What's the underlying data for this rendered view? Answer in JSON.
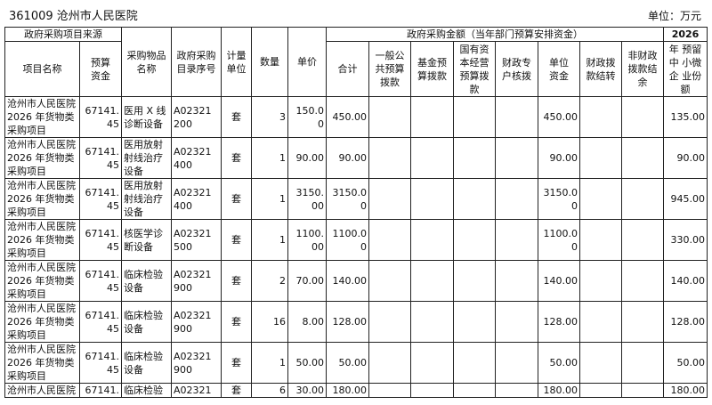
{
  "header": {
    "title": "361009 沧州市人民医院",
    "unit": "单位：万元"
  },
  "table": {
    "group_source": "政府采购项目来源",
    "group_amount": "政府采购金额（当年部门预算安排资金）",
    "group_year": "2026",
    "columns": [
      "项目名称",
      "预算\n资金",
      "采购物品\n名称",
      "政府采购\n目录序号",
      "计量\n单位",
      "数量",
      "单价",
      "合计",
      "一般公\n共预算\n拨款",
      "基金预\n算拨款",
      "国有资\n本经营\n预算拨\n款",
      "财政专\n户核拨",
      "单位\n资金",
      "财政拨\n款结转",
      "非财政\n拨款结\n余",
      "年 预留\n中 小微\n企 业份\n额"
    ],
    "rows": [
      [
        "沧州市人民医院\n2026 年货物类\n采购项目",
        "67141.\n45",
        "医用 X 线\n诊断设备",
        "A02321\n200",
        "套",
        "3",
        "150.0\n0",
        "450.00",
        "",
        "",
        "",
        "",
        "450.00",
        "",
        "",
        "135.00"
      ],
      [
        "沧州市人民医院\n2026 年货物类\n采购项目",
        "67141.\n45",
        "医用放射\n射线治疗\n设备",
        "A02321\n400",
        "套",
        "1",
        "90.00",
        "90.00",
        "",
        "",
        "",
        "",
        "90.00",
        "",
        "",
        "90.00"
      ],
      [
        "沧州市人民医院\n2026 年货物类\n采购项目",
        "67141.\n45",
        "医用放射\n射线治疗\n设备",
        "A02321\n400",
        "套",
        "1",
        "3150.\n00",
        "3150.0\n0",
        "",
        "",
        "",
        "",
        "3150.0\n0",
        "",
        "",
        "945.00"
      ],
      [
        "沧州市人民医院\n2026 年货物类\n采购项目",
        "67141.\n45",
        "核医学诊\n断设备",
        "A02321\n500",
        "套",
        "1",
        "1100.\n00",
        "1100.0\n0",
        "",
        "",
        "",
        "",
        "1100.0\n0",
        "",
        "",
        "330.00"
      ],
      [
        "沧州市人民医院\n2026 年货物类\n采购项目",
        "67141.\n45",
        "临床检验\n设备",
        "A02321\n900",
        "套",
        "2",
        "70.00",
        "140.00",
        "",
        "",
        "",
        "",
        "140.00",
        "",
        "",
        "140.00"
      ],
      [
        "沧州市人民医院\n2026 年货物类\n采购项目",
        "67141.\n45",
        "临床检验\n设备",
        "A02321\n900",
        "套",
        "16",
        "8.00",
        "128.00",
        "",
        "",
        "",
        "",
        "128.00",
        "",
        "",
        "128.00"
      ],
      [
        "沧州市人民医院\n2026 年货物类\n采购项目",
        "67141.\n45",
        "临床检验\n设备",
        "A02321\n900",
        "套",
        "1",
        "50.00",
        "50.00",
        "",
        "",
        "",
        "",
        "50.00",
        "",
        "",
        "50.00"
      ],
      [
        "沧州市人民医院",
        "67141.",
        "临床检验",
        "A02321",
        "套",
        "6",
        "30.00",
        "180.00",
        "",
        "",
        "",
        "",
        "180.00",
        "",
        "",
        "180.00"
      ]
    ]
  }
}
